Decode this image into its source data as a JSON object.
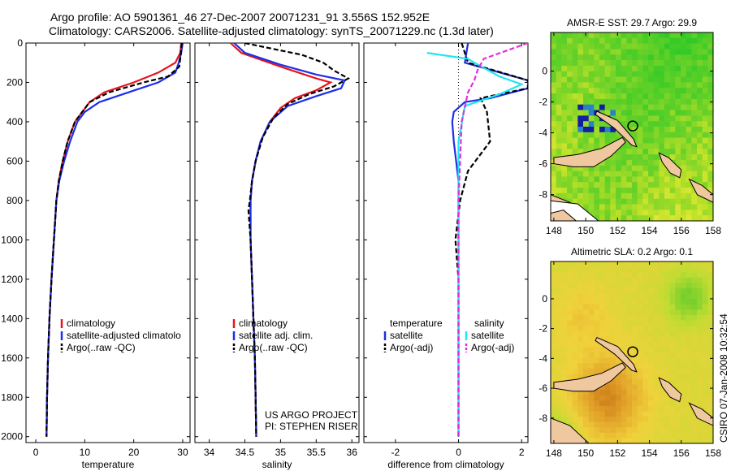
{
  "header": {
    "line1": "Argo profile: AO 5901361_46 27-Dec-2007 20071231_91 3.556S 152.952E",
    "line2": "Climatology: CARS2006. Satellite-adjusted climatology: synTS_20071229.nc (1.3d later)"
  },
  "side_text": "CSIRO 07-Jan-2008 10:32:54",
  "colors": {
    "climatology": "#e8141e",
    "satellite": "#1c2ee6",
    "argo": "#000000",
    "sal_satellite": "#20e6ee",
    "sal_argo": "#e22ee0"
  },
  "chart_data": [
    {
      "type": "line",
      "id": "temperature",
      "xlabel": "temperature",
      "xlim": [
        -2,
        31.5
      ],
      "ylim": [
        2030,
        0
      ],
      "xticks": [
        0,
        10,
        20,
        30
      ],
      "yticks": [
        0,
        200,
        400,
        600,
        800,
        1000,
        1200,
        1400,
        1600,
        1800,
        2000
      ],
      "legend": [
        "climatology",
        "satellite-adjusted climatolo",
        "Argo(..raw -QC)"
      ],
      "series": [
        {
          "name": "climatology",
          "color": "#e8141e",
          "dash": "",
          "points": [
            [
              29.7,
              0
            ],
            [
              29.5,
              50
            ],
            [
              28.5,
              100
            ],
            [
              25,
              150
            ],
            [
              20,
              200
            ],
            [
              14,
              250
            ],
            [
              11,
              300
            ],
            [
              9.5,
              350
            ],
            [
              8,
              400
            ],
            [
              6.5,
              500
            ],
            [
              5.5,
              600
            ],
            [
              4.7,
              700
            ],
            [
              4.2,
              800
            ],
            [
              3.7,
              1000
            ],
            [
              3.2,
              1200
            ],
            [
              2.8,
              1400
            ],
            [
              2.5,
              1600
            ],
            [
              2.3,
              1800
            ],
            [
              2.2,
              2000
            ]
          ]
        },
        {
          "name": "satellite",
          "color": "#1c2ee6",
          "dash": "",
          "points": [
            [
              30,
              0
            ],
            [
              29.7,
              50
            ],
            [
              29.2,
              100
            ],
            [
              28.5,
              150
            ],
            [
              25,
              200
            ],
            [
              19,
              250
            ],
            [
              13,
              300
            ],
            [
              10,
              350
            ],
            [
              8.5,
              400
            ],
            [
              7,
              500
            ],
            [
              5.8,
              600
            ],
            [
              4.8,
              700
            ],
            [
              4.2,
              800
            ],
            [
              3.7,
              1000
            ],
            [
              3.2,
              1200
            ],
            [
              2.8,
              1400
            ],
            [
              2.5,
              1600
            ],
            [
              2.3,
              1800
            ],
            [
              2.2,
              2000
            ]
          ]
        },
        {
          "name": "argo",
          "color": "#000000",
          "dash": "6,3",
          "points": [
            [
              29.8,
              0
            ],
            [
              29.6,
              60
            ],
            [
              29.3,
              120
            ],
            [
              27,
              170
            ],
            [
              22,
              200
            ],
            [
              15,
              250
            ],
            [
              11,
              300
            ],
            [
              9.5,
              350
            ],
            [
              8,
              400
            ],
            [
              6.5,
              500
            ],
            [
              5.5,
              600
            ],
            [
              4.7,
              700
            ],
            [
              4.2,
              800
            ],
            [
              3.7,
              1000
            ],
            [
              3.2,
              1200
            ],
            [
              2.8,
              1400
            ],
            [
              2.5,
              1600
            ],
            [
              2.3,
              1800
            ],
            [
              2.2,
              2000
            ]
          ]
        }
      ]
    },
    {
      "type": "line",
      "id": "salinity",
      "xlabel": "salinity",
      "xlim": [
        33.8,
        36.1
      ],
      "ylim": [
        2030,
        0
      ],
      "xticks": [
        34,
        34.5,
        35,
        35.5,
        36
      ],
      "legend": [
        "climatology",
        "satellite adj. clim.",
        "Argo(..raw -QC)"
      ],
      "annotation": [
        "US ARGO PROJECT",
        "PI: STEPHEN RISER"
      ],
      "series": [
        {
          "name": "climatology",
          "color": "#e8141e",
          "dash": "",
          "points": [
            [
              34.3,
              0
            ],
            [
              34.45,
              50
            ],
            [
              35,
              120
            ],
            [
              35.5,
              180
            ],
            [
              35.7,
              200
            ],
            [
              35.5,
              240
            ],
            [
              35.2,
              280
            ],
            [
              35,
              330
            ],
            [
              34.85,
              400
            ],
            [
              34.72,
              500
            ],
            [
              34.65,
              600
            ],
            [
              34.6,
              700
            ],
            [
              34.58,
              800
            ],
            [
              34.58,
              1000
            ],
            [
              34.6,
              1200
            ],
            [
              34.62,
              1400
            ],
            [
              34.64,
              1600
            ],
            [
              34.65,
              1800
            ],
            [
              34.66,
              2000
            ]
          ]
        },
        {
          "name": "satellite",
          "color": "#1c2ee6",
          "dash": "",
          "points": [
            [
              34.35,
              0
            ],
            [
              34.5,
              50
            ],
            [
              35,
              110
            ],
            [
              35.5,
              160
            ],
            [
              35.9,
              190
            ],
            [
              35.85,
              230
            ],
            [
              35.5,
              270
            ],
            [
              35.1,
              320
            ],
            [
              34.85,
              400
            ],
            [
              34.72,
              500
            ],
            [
              34.65,
              600
            ],
            [
              34.6,
              700
            ],
            [
              34.58,
              800
            ],
            [
              34.58,
              1000
            ],
            [
              34.6,
              1200
            ],
            [
              34.62,
              1400
            ],
            [
              34.64,
              1600
            ],
            [
              34.65,
              1800
            ],
            [
              34.66,
              2000
            ]
          ]
        },
        {
          "name": "argo",
          "color": "#000000",
          "dash": "6,3",
          "points": [
            [
              34.5,
              0
            ],
            [
              34.9,
              30
            ],
            [
              35.3,
              60
            ],
            [
              35.6,
              100
            ],
            [
              35.75,
              140
            ],
            [
              35.95,
              180
            ],
            [
              35.75,
              220
            ],
            [
              35.4,
              260
            ],
            [
              35.1,
              310
            ],
            [
              34.9,
              380
            ],
            [
              34.75,
              480
            ],
            [
              34.65,
              600
            ],
            [
              34.6,
              700
            ],
            [
              34.57,
              800
            ],
            [
              34.55,
              850
            ],
            [
              34.58,
              1000
            ],
            [
              34.6,
              1200
            ],
            [
              34.62,
              1400
            ],
            [
              34.64,
              1600
            ],
            [
              34.65,
              1800
            ],
            [
              34.66,
              2000
            ]
          ]
        }
      ]
    },
    {
      "type": "line",
      "id": "difference",
      "xlabel": "difference from climatology",
      "xlim": [
        -3.0,
        2.2
      ],
      "ylim": [
        2030,
        0
      ],
      "xticks": [
        -2,
        0,
        2
      ],
      "legend_left_title": "temperature",
      "legend_right_title": "salinity",
      "legend": [
        "satellite",
        "Argo(-adj)",
        "satellite",
        "Argo(-adj)"
      ],
      "series": [
        {
          "name": "temperature satellite",
          "color": "#1c2ee6",
          "dash": "",
          "points": [
            [
              0.3,
              0
            ],
            [
              0.2,
              100
            ],
            [
              2.2,
              190
            ],
            [
              2.2,
              230
            ],
            [
              1,
              280
            ],
            [
              0.2,
              300
            ],
            [
              -0.15,
              350
            ],
            [
              -0.2,
              400
            ],
            [
              -0.15,
              500
            ],
            [
              0,
              700
            ],
            [
              0,
              2000
            ]
          ]
        },
        {
          "name": "temperature argo",
          "color": "#000000",
          "dash": "6,3",
          "points": [
            [
              0.1,
              0
            ],
            [
              0.3,
              100
            ],
            [
              2.2,
              190
            ],
            [
              2.2,
              230
            ],
            [
              0.7,
              280
            ],
            [
              0.9,
              350
            ],
            [
              1.0,
              500
            ],
            [
              0.3,
              650
            ],
            [
              0.05,
              800
            ],
            [
              -0.1,
              1000
            ],
            [
              0,
              1200
            ],
            [
              0,
              2000
            ]
          ]
        },
        {
          "name": "salinity satellite",
          "color": "#20e6ee",
          "dash": "",
          "points": [
            [
              -1.0,
              50
            ],
            [
              0.3,
              80
            ],
            [
              0.5,
              100
            ],
            [
              1.3,
              170
            ],
            [
              2.0,
              210
            ],
            [
              1.3,
              260
            ],
            [
              0.2,
              320
            ],
            [
              0,
              500
            ],
            [
              0,
              2000
            ]
          ]
        },
        {
          "name": "salinity argo",
          "color": "#e22ee0",
          "dash": "6,3",
          "points": [
            [
              2.2,
              0
            ],
            [
              0.8,
              80
            ],
            [
              0.6,
              140
            ],
            [
              0.5,
              190
            ],
            [
              0.3,
              250
            ],
            [
              0.1,
              400
            ],
            [
              0.05,
              600
            ],
            [
              0,
              800
            ],
            [
              0,
              2000
            ]
          ]
        }
      ]
    },
    {
      "type": "heatmap",
      "id": "sst_map",
      "title": "AMSR-E SST: 29.7 Argo: 29.9",
      "xticks": [
        148,
        150,
        152,
        154,
        156,
        158
      ],
      "yticks": [
        0,
        -2,
        -4,
        -6,
        -8
      ],
      "xlim": [
        147.8,
        158
      ],
      "ylim": [
        -9.7,
        2.5
      ],
      "argo_position": [
        152.952,
        -3.556
      ]
    },
    {
      "type": "heatmap",
      "id": "sla_map",
      "title": "Altimetric SLA: 0.2 Argo: 0.1",
      "xticks": [
        148,
        150,
        152,
        154,
        156,
        158
      ],
      "yticks": [
        0,
        -2,
        -4,
        -6,
        -8
      ],
      "xlim": [
        147.8,
        158
      ],
      "ylim": [
        -9.7,
        2.5
      ],
      "argo_position": [
        152.952,
        -3.556
      ]
    }
  ]
}
